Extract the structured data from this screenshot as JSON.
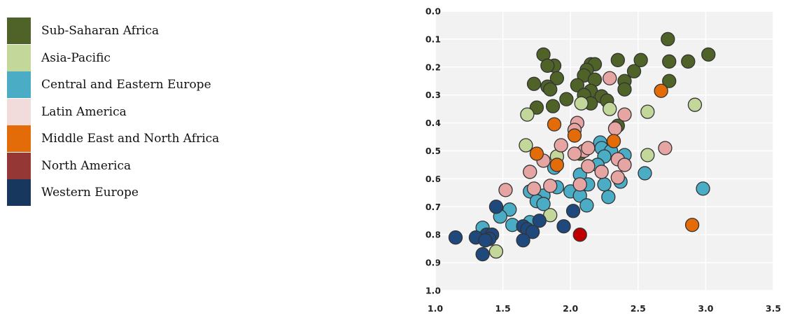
{
  "legend": [
    {
      "label": "Sub-Saharan Africa",
      "color": "#4f6228"
    },
    {
      "label": "Asia-Pacific",
      "color": "#c4d79b"
    },
    {
      "label": "Central and Eastern Europe",
      "color": "#4bacc6"
    },
    {
      "label": "Latin America",
      "color": "#f2dcdb"
    },
    {
      "label": "Middle East and North Africa",
      "color": "#e36c09"
    },
    {
      "label": "North America",
      "color": "#953735"
    },
    {
      "label": "Western Europe",
      "color": "#17375e"
    }
  ],
  "chart_data": {
    "type": "scatter",
    "title": "",
    "xlabel": "",
    "ylabel": "",
    "xlim": [
      1.0,
      3.5
    ],
    "ylim": [
      0.0,
      1.0
    ],
    "y_inverted": true,
    "grid": true,
    "x_ticks": [
      "1.0",
      "1.5",
      "2.0",
      "2.5",
      "3.0",
      "3.5"
    ],
    "y_ticks": [
      "0.0",
      "0.1",
      "0.2",
      "0.3",
      "0.4",
      "0.5",
      "0.6",
      "0.7",
      "0.8",
      "0.9",
      "1.0"
    ],
    "legend_position": "left",
    "series": [
      {
        "name": "Sub-Saharan Africa",
        "color": "#4f6228",
        "points": [
          [
            2.72,
            0.1
          ],
          [
            3.02,
            0.155
          ],
          [
            1.8,
            0.155
          ],
          [
            1.88,
            0.195
          ],
          [
            1.83,
            0.195
          ],
          [
            2.15,
            0.19
          ],
          [
            2.18,
            0.19
          ],
          [
            2.12,
            0.21
          ],
          [
            2.47,
            0.215
          ],
          [
            2.52,
            0.175
          ],
          [
            2.35,
            0.175
          ],
          [
            2.73,
            0.18
          ],
          [
            2.87,
            0.18
          ],
          [
            1.9,
            0.24
          ],
          [
            2.1,
            0.23
          ],
          [
            2.18,
            0.245
          ],
          [
            2.4,
            0.25
          ],
          [
            2.73,
            0.25
          ],
          [
            2.05,
            0.265
          ],
          [
            1.73,
            0.26
          ],
          [
            1.83,
            0.27
          ],
          [
            1.85,
            0.28
          ],
          [
            2.15,
            0.285
          ],
          [
            2.4,
            0.28
          ],
          [
            2.1,
            0.3
          ],
          [
            2.23,
            0.305
          ],
          [
            2.27,
            0.32
          ],
          [
            1.97,
            0.315
          ],
          [
            2.15,
            0.33
          ],
          [
            1.87,
            0.34
          ],
          [
            1.75,
            0.345
          ],
          [
            2.35,
            0.41
          ],
          [
            2.07,
            0.51
          ]
        ]
      },
      {
        "name": "Asia-Pacific",
        "color": "#c4d79b",
        "points": [
          [
            2.08,
            0.33
          ],
          [
            2.29,
            0.35
          ],
          [
            1.68,
            0.37
          ],
          [
            2.57,
            0.36
          ],
          [
            2.92,
            0.335
          ],
          [
            1.67,
            0.48
          ],
          [
            1.9,
            0.52
          ],
          [
            2.57,
            0.515
          ],
          [
            1.85,
            0.73
          ],
          [
            1.45,
            0.86
          ]
        ]
      },
      {
        "name": "Central and Eastern Europe",
        "color": "#4bacc6",
        "points": [
          [
            2.22,
            0.47
          ],
          [
            2.23,
            0.49
          ],
          [
            2.3,
            0.5
          ],
          [
            2.25,
            0.52
          ],
          [
            2.4,
            0.515
          ],
          [
            2.2,
            0.55
          ],
          [
            1.88,
            0.56
          ],
          [
            2.07,
            0.585
          ],
          [
            2.55,
            0.58
          ],
          [
            1.9,
            0.63
          ],
          [
            2.0,
            0.645
          ],
          [
            2.13,
            0.62
          ],
          [
            2.25,
            0.62
          ],
          [
            2.37,
            0.61
          ],
          [
            2.07,
            0.66
          ],
          [
            2.98,
            0.635
          ],
          [
            1.7,
            0.645
          ],
          [
            1.8,
            0.66
          ],
          [
            2.28,
            0.665
          ],
          [
            1.75,
            0.68
          ],
          [
            1.8,
            0.69
          ],
          [
            2.12,
            0.695
          ],
          [
            1.55,
            0.71
          ],
          [
            1.48,
            0.735
          ],
          [
            1.57,
            0.765
          ],
          [
            1.7,
            0.755
          ],
          [
            1.35,
            0.775
          ]
        ]
      },
      {
        "name": "Latin America",
        "color": "#e6a5a3",
        "points": [
          [
            2.29,
            0.24
          ],
          [
            2.4,
            0.37
          ],
          [
            2.33,
            0.42
          ],
          [
            2.05,
            0.4
          ],
          [
            2.03,
            0.425
          ],
          [
            1.93,
            0.48
          ],
          [
            2.1,
            0.5
          ],
          [
            2.13,
            0.49
          ],
          [
            2.7,
            0.49
          ],
          [
            1.8,
            0.535
          ],
          [
            2.03,
            0.51
          ],
          [
            2.35,
            0.53
          ],
          [
            2.4,
            0.55
          ],
          [
            2.13,
            0.555
          ],
          [
            1.7,
            0.575
          ],
          [
            2.23,
            0.575
          ],
          [
            2.07,
            0.62
          ],
          [
            1.85,
            0.625
          ],
          [
            2.35,
            0.595
          ],
          [
            1.52,
            0.64
          ],
          [
            1.73,
            0.635
          ]
        ]
      },
      {
        "name": "Middle East and North Africa",
        "color": "#e36c09",
        "points": [
          [
            2.67,
            0.285
          ],
          [
            1.88,
            0.405
          ],
          [
            2.03,
            0.445
          ],
          [
            2.32,
            0.465
          ],
          [
            1.75,
            0.51
          ],
          [
            1.9,
            0.55
          ],
          [
            2.9,
            0.765
          ]
        ]
      },
      {
        "name": "North America",
        "color": "#c00000",
        "points": [
          [
            2.07,
            0.8
          ]
        ]
      },
      {
        "name": "Western Europe",
        "color": "#1f497d",
        "points": [
          [
            1.45,
            0.7
          ],
          [
            2.02,
            0.715
          ],
          [
            1.77,
            0.75
          ],
          [
            1.95,
            0.77
          ],
          [
            1.65,
            0.77
          ],
          [
            1.68,
            0.78
          ],
          [
            1.72,
            0.79
          ],
          [
            1.38,
            0.8
          ],
          [
            1.42,
            0.8
          ],
          [
            1.4,
            0.815
          ],
          [
            1.3,
            0.81
          ],
          [
            1.37,
            0.82
          ],
          [
            1.15,
            0.81
          ],
          [
            1.65,
            0.82
          ],
          [
            1.35,
            0.87
          ]
        ]
      }
    ]
  }
}
